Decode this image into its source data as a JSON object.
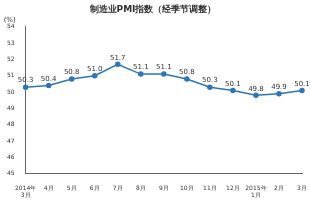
{
  "chart_data": {
    "type": "line",
    "title": "制造业PMI指数（经季节调整）",
    "y_label": "(%)",
    "categories": [
      "2014年3月",
      "4月",
      "5月",
      "6月",
      "7月",
      "8月",
      "9月",
      "10月",
      "11月",
      "12月",
      "2015年1月",
      "2月",
      "3月"
    ],
    "values": [
      50.3,
      50.4,
      50.8,
      51.0,
      51.7,
      51.1,
      51.1,
      50.8,
      50.3,
      50.1,
      49.8,
      49.9,
      50.1
    ],
    "value_labels": [
      "50.3",
      "50.4",
      "50.8",
      "51.0",
      "51.7",
      "51.1",
      "51.1",
      "50.8",
      "50.3",
      "50.1",
      "49.8",
      "49.9",
      "50.1"
    ],
    "color": "#2e75b6",
    "marker": "circle",
    "ylim": [
      45,
      54
    ],
    "yticks": [
      45,
      46,
      47,
      48,
      49,
      50,
      51,
      52,
      53,
      54
    ],
    "grid": false,
    "data_labels": true
  }
}
